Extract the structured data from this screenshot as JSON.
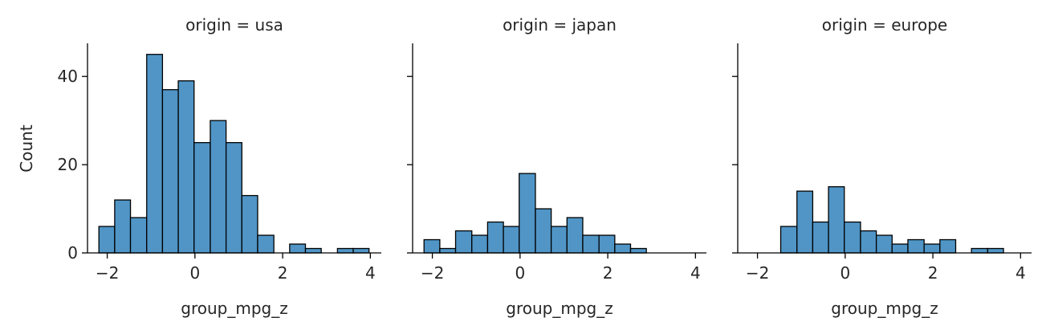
{
  "chart_data": {
    "type": "bar",
    "x_label": "group_mpg_z",
    "y_label": "Count",
    "xlim": [
      -2.45,
      4.25
    ],
    "ylim": [
      0,
      47.5
    ],
    "x_ticks": [
      -2,
      0,
      2,
      4
    ],
    "x_tick_labels": [
      "−2",
      "0",
      "2",
      "4"
    ],
    "y_ticks": [
      0,
      20,
      40
    ],
    "y_tick_labels": [
      "0",
      "20",
      "40"
    ],
    "bar_color": "#5095c6",
    "edge_color": "#000000",
    "panels": [
      {
        "title": "origin = usa",
        "bins": [
          {
            "x0": -2.19,
            "x1": -1.83,
            "count": 6
          },
          {
            "x0": -1.83,
            "x1": -1.47,
            "count": 12
          },
          {
            "x0": -1.47,
            "x1": -1.1,
            "count": 8
          },
          {
            "x0": -1.1,
            "x1": -0.74,
            "count": 45
          },
          {
            "x0": -0.74,
            "x1": -0.38,
            "count": 37
          },
          {
            "x0": -0.38,
            "x1": -0.02,
            "count": 39
          },
          {
            "x0": -0.02,
            "x1": 0.35,
            "count": 25
          },
          {
            "x0": 0.35,
            "x1": 0.71,
            "count": 30
          },
          {
            "x0": 0.71,
            "x1": 1.07,
            "count": 25
          },
          {
            "x0": 1.07,
            "x1": 1.43,
            "count": 13
          },
          {
            "x0": 1.43,
            "x1": 1.8,
            "count": 4
          },
          {
            "x0": 1.8,
            "x1": 2.16,
            "count": 0
          },
          {
            "x0": 2.16,
            "x1": 2.52,
            "count": 2
          },
          {
            "x0": 2.52,
            "x1": 2.88,
            "count": 1
          },
          {
            "x0": 2.88,
            "x1": 3.25,
            "count": 0
          },
          {
            "x0": 3.25,
            "x1": 3.61,
            "count": 1
          },
          {
            "x0": 3.61,
            "x1": 3.97,
            "count": 1
          }
        ]
      },
      {
        "title": "origin = japan",
        "bins": [
          {
            "x0": -2.19,
            "x1": -1.83,
            "count": 3
          },
          {
            "x0": -1.83,
            "x1": -1.47,
            "count": 1
          },
          {
            "x0": -1.47,
            "x1": -1.1,
            "count": 5
          },
          {
            "x0": -1.1,
            "x1": -0.74,
            "count": 4
          },
          {
            "x0": -0.74,
            "x1": -0.38,
            "count": 7
          },
          {
            "x0": -0.38,
            "x1": -0.02,
            "count": 6
          },
          {
            "x0": -0.02,
            "x1": 0.35,
            "count": 18
          },
          {
            "x0": 0.35,
            "x1": 0.71,
            "count": 10
          },
          {
            "x0": 0.71,
            "x1": 1.07,
            "count": 6
          },
          {
            "x0": 1.07,
            "x1": 1.43,
            "count": 8
          },
          {
            "x0": 1.43,
            "x1": 1.8,
            "count": 4
          },
          {
            "x0": 1.8,
            "x1": 2.16,
            "count": 4
          },
          {
            "x0": 2.16,
            "x1": 2.52,
            "count": 2
          },
          {
            "x0": 2.52,
            "x1": 2.88,
            "count": 1
          }
        ]
      },
      {
        "title": "origin = europe",
        "bins": [
          {
            "x0": -1.47,
            "x1": -1.1,
            "count": 6
          },
          {
            "x0": -1.1,
            "x1": -0.74,
            "count": 14
          },
          {
            "x0": -0.74,
            "x1": -0.38,
            "count": 7
          },
          {
            "x0": -0.38,
            "x1": -0.02,
            "count": 15
          },
          {
            "x0": -0.02,
            "x1": 0.35,
            "count": 7
          },
          {
            "x0": 0.35,
            "x1": 0.71,
            "count": 5
          },
          {
            "x0": 0.71,
            "x1": 1.07,
            "count": 4
          },
          {
            "x0": 1.07,
            "x1": 1.43,
            "count": 2
          },
          {
            "x0": 1.43,
            "x1": 1.8,
            "count": 3
          },
          {
            "x0": 1.8,
            "x1": 2.16,
            "count": 2
          },
          {
            "x0": 2.16,
            "x1": 2.52,
            "count": 3
          },
          {
            "x0": 2.52,
            "x1": 2.88,
            "count": 0
          },
          {
            "x0": 2.88,
            "x1": 3.25,
            "count": 1
          },
          {
            "x0": 3.25,
            "x1": 3.61,
            "count": 1
          }
        ]
      }
    ]
  }
}
